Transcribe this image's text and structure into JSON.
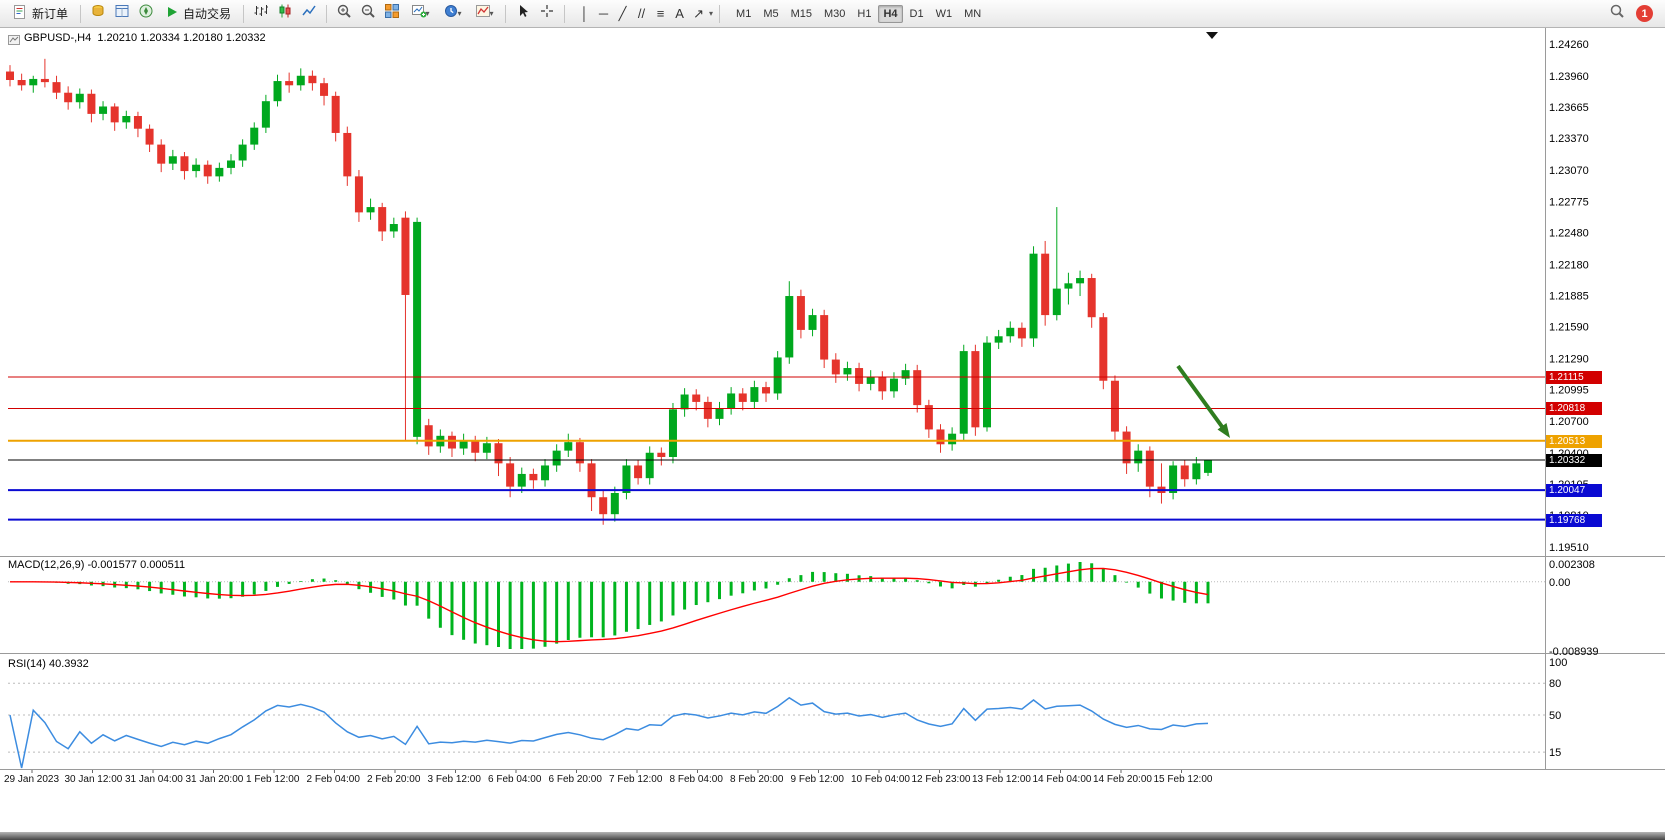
{
  "toolbar": {
    "new_order_label": "新订单",
    "autotrade_label": "自动交易",
    "timeframes": [
      "M1",
      "M5",
      "M15",
      "M30",
      "H1",
      "H4",
      "D1",
      "W1",
      "MN"
    ],
    "active_timeframe": "H4",
    "draw_tools": [
      {
        "name": "vertical-line-tool",
        "glyph": "│"
      },
      {
        "name": "horizontal-line-tool",
        "glyph": "─"
      },
      {
        "name": "trendline-tool",
        "glyph": "╱"
      },
      {
        "name": "channel-tool",
        "glyph": "//"
      },
      {
        "name": "fibonacci-tool",
        "glyph": "≡"
      },
      {
        "name": "text-tool",
        "glyph": "A"
      },
      {
        "name": "arrow-tool",
        "glyph": "↗"
      }
    ],
    "notification_count": "1"
  },
  "chart": {
    "symbol_info": "GBPUSD-,H4  1.20210 1.20334 1.20180 1.20332"
  },
  "macd": {
    "label": "MACD(12,26,9) -0.001577 0.000511",
    "axis": [
      "0.002308",
      "0.00",
      "-0.008939"
    ]
  },
  "rsi": {
    "label": "RSI(14) 40.3932",
    "axis": [
      "100",
      "80",
      "50",
      "15"
    ],
    "levels": [
      80,
      50,
      15
    ]
  },
  "chart_data": {
    "type": "candlestick",
    "symbol": "GBPUSD-",
    "timeframe": "H4",
    "title": "GBPUSD-,H4",
    "price_axis": {
      "top": 1.2426,
      "bottom": 1.1951,
      "ticks": [
        1.2426,
        1.2396,
        1.23665,
        1.2337,
        1.2307,
        1.22775,
        1.2248,
        1.2218,
        1.21885,
        1.2159,
        1.2129,
        1.20995,
        1.207,
        1.204,
        1.20105,
        1.1981,
        1.1951
      ]
    },
    "time_labels": [
      "29 Jan 2023",
      "30 Jan 12:00",
      "31 Jan 04:00",
      "31 Jan 20:00",
      "1 Feb 12:00",
      "2 Feb 04:00",
      "2 Feb 20:00",
      "3 Feb 12:00",
      "6 Feb 04:00",
      "6 Feb 20:00",
      "7 Feb 12:00",
      "8 Feb 04:00",
      "8 Feb 20:00",
      "9 Feb 12:00",
      "10 Feb 04:00",
      "12 Feb 23:00",
      "13 Feb 12:00",
      "14 Feb 04:00",
      "14 Feb 20:00",
      "15 Feb 12:00"
    ],
    "hlines": [
      {
        "name": "resistance-line-1",
        "price": 1.21115,
        "label": "1.21115",
        "color": "#d20000",
        "width": 1
      },
      {
        "name": "resistance-line-2",
        "price": 1.20818,
        "label": "1.20818",
        "color": "#d20000",
        "width": 1
      },
      {
        "name": "pivot-line",
        "price": 1.20513,
        "label": "1.20513",
        "color": "#eea200",
        "width": 2
      },
      {
        "name": "current-price-line",
        "price": 1.20332,
        "label": "1.20332",
        "color": "#000000",
        "width": 1
      },
      {
        "name": "support-line-1",
        "price": 1.20047,
        "label": "1.20047",
        "color": "#0a0ad2",
        "width": 2
      },
      {
        "name": "support-line-2",
        "price": 1.19768,
        "label": "1.19768",
        "color": "#0a0ad2",
        "width": 2
      }
    ],
    "colors": {
      "up": "#00a81e",
      "down": "#e5342c",
      "macd_hist": "#00b41e",
      "macd_signal": "#ff0000",
      "rsi": "#3c8ce0",
      "arrow": "#2f7d1f"
    },
    "indicators": [
      "MACD(12,26,9)",
      "RSI(14)"
    ],
    "ohlc": [
      [
        1.24,
        1.2406,
        1.2386,
        1.2392
      ],
      [
        1.2392,
        1.2398,
        1.2382,
        1.2387
      ],
      [
        1.2387,
        1.2396,
        1.238,
        1.2393
      ],
      [
        1.2393,
        1.2412,
        1.2385,
        1.239
      ],
      [
        1.239,
        1.2396,
        1.2374,
        1.238
      ],
      [
        1.238,
        1.2386,
        1.2364,
        1.2371
      ],
      [
        1.2371,
        1.2384,
        1.2365,
        1.2379
      ],
      [
        1.2379,
        1.2383,
        1.2352,
        1.236
      ],
      [
        1.236,
        1.2372,
        1.2354,
        1.2367
      ],
      [
        1.2367,
        1.237,
        1.2344,
        1.2352
      ],
      [
        1.2352,
        1.2363,
        1.2346,
        1.2358
      ],
      [
        1.2358,
        1.2362,
        1.2338,
        1.2346
      ],
      [
        1.2346,
        1.235,
        1.2324,
        1.2331
      ],
      [
        1.2331,
        1.2336,
        1.2305,
        1.2313
      ],
      [
        1.2313,
        1.2326,
        1.2307,
        1.232
      ],
      [
        1.232,
        1.2324,
        1.2298,
        1.2306
      ],
      [
        1.2306,
        1.2318,
        1.23,
        1.2312
      ],
      [
        1.2312,
        1.2316,
        1.2294,
        1.2301
      ],
      [
        1.2301,
        1.2314,
        1.2296,
        1.2309
      ],
      [
        1.2309,
        1.2322,
        1.2303,
        1.2316
      ],
      [
        1.2316,
        1.2336,
        1.231,
        1.2331
      ],
      [
        1.2331,
        1.2352,
        1.2326,
        1.2347
      ],
      [
        1.2347,
        1.2378,
        1.2342,
        1.2372
      ],
      [
        1.2372,
        1.2397,
        1.2367,
        1.2391
      ],
      [
        1.2391,
        1.2399,
        1.238,
        1.2387
      ],
      [
        1.2387,
        1.2403,
        1.2382,
        1.2396
      ],
      [
        1.2396,
        1.2401,
        1.2382,
        1.2389
      ],
      [
        1.2389,
        1.2394,
        1.2368,
        1.2377
      ],
      [
        1.2377,
        1.2381,
        1.2334,
        1.2342
      ],
      [
        1.2342,
        1.2348,
        1.2292,
        1.2301
      ],
      [
        1.2301,
        1.2307,
        1.2258,
        1.2267
      ],
      [
        1.2267,
        1.228,
        1.226,
        1.2272
      ],
      [
        1.2272,
        1.2276,
        1.224,
        1.2249
      ],
      [
        1.2249,
        1.2262,
        1.2243,
        1.2256
      ],
      [
        1.2262,
        1.2268,
        1.2052,
        1.2189
      ],
      [
        1.2055,
        1.2262,
        1.2048,
        1.2258
      ],
      [
        1.2066,
        1.2072,
        1.2038,
        1.2046
      ],
      [
        1.2046,
        1.2062,
        1.204,
        1.2056
      ],
      [
        1.2056,
        1.206,
        1.2036,
        1.2044
      ],
      [
        1.2044,
        1.2058,
        1.2038,
        1.2052
      ],
      [
        1.2052,
        1.2056,
        1.2032,
        1.204
      ],
      [
        1.204,
        1.2055,
        1.2034,
        1.2049
      ],
      [
        1.2049,
        1.2053,
        1.2018,
        1.203
      ],
      [
        1.203,
        1.2036,
        1.1998,
        1.2008
      ],
      [
        1.2008,
        1.2026,
        1.2002,
        1.202
      ],
      [
        1.202,
        1.2025,
        1.2006,
        1.2014
      ],
      [
        1.2014,
        1.2034,
        1.2008,
        1.2028
      ],
      [
        1.2028,
        1.2048,
        1.2022,
        1.2042
      ],
      [
        1.2042,
        1.2058,
        1.2036,
        1.205
      ],
      [
        1.205,
        1.2054,
        1.2022,
        1.203
      ],
      [
        1.203,
        1.2034,
        1.1985,
        1.1998
      ],
      [
        1.1998,
        1.2004,
        1.1972,
        1.1982
      ],
      [
        1.1982,
        1.2008,
        1.1975,
        1.2002
      ],
      [
        1.2002,
        1.2034,
        1.1996,
        1.2028
      ],
      [
        1.2028,
        1.2033,
        1.201,
        1.2016
      ],
      [
        1.2016,
        1.2046,
        1.201,
        1.204
      ],
      [
        1.204,
        1.2045,
        1.2028,
        1.2036
      ],
      [
        1.2036,
        1.2087,
        1.203,
        1.2081
      ],
      [
        1.2081,
        1.2101,
        1.2074,
        1.2095
      ],
      [
        1.2095,
        1.21,
        1.208,
        1.2088
      ],
      [
        1.2088,
        1.2093,
        1.2064,
        1.2072
      ],
      [
        1.2072,
        1.2088,
        1.2066,
        1.2082
      ],
      [
        1.2082,
        1.2102,
        1.2076,
        1.2096
      ],
      [
        1.2096,
        1.2101,
        1.208,
        1.2088
      ],
      [
        1.2088,
        1.2108,
        1.2082,
        1.2102
      ],
      [
        1.2102,
        1.2107,
        1.2088,
        1.2096
      ],
      [
        1.2096,
        1.2136,
        1.209,
        1.213
      ],
      [
        1.213,
        1.2202,
        1.2124,
        1.2188
      ],
      [
        1.2188,
        1.2194,
        1.2148,
        1.2156
      ],
      [
        1.2156,
        1.2176,
        1.215,
        1.217
      ],
      [
        1.217,
        1.2175,
        1.212,
        1.2128
      ],
      [
        1.2128,
        1.2134,
        1.2106,
        1.2114
      ],
      [
        1.2114,
        1.2126,
        1.2108,
        1.212
      ],
      [
        1.212,
        1.2125,
        1.2098,
        1.2105
      ],
      [
        1.2105,
        1.2118,
        1.2099,
        1.2112
      ],
      [
        1.2112,
        1.2117,
        1.209,
        1.2098
      ],
      [
        1.2098,
        1.2116,
        1.2092,
        1.211
      ],
      [
        1.211,
        1.2124,
        1.2104,
        1.2118
      ],
      [
        1.2118,
        1.2123,
        1.2078,
        1.2085
      ],
      [
        1.2085,
        1.209,
        1.2054,
        1.2062
      ],
      [
        1.2062,
        1.2067,
        1.204,
        1.2048
      ],
      [
        1.2048,
        1.2064,
        1.2042,
        1.2058
      ],
      [
        1.2058,
        1.2142,
        1.2052,
        1.2136
      ],
      [
        1.2136,
        1.2142,
        1.2056,
        1.2064
      ],
      [
        1.2064,
        1.215,
        1.206,
        1.2144
      ],
      [
        1.2144,
        1.2156,
        1.2138,
        1.215
      ],
      [
        1.215,
        1.2164,
        1.2144,
        1.2158
      ],
      [
        1.2158,
        1.2163,
        1.214,
        1.2148
      ],
      [
        1.2148,
        1.2235,
        1.214,
        1.2228
      ],
      [
        1.2228,
        1.224,
        1.216,
        1.217
      ],
      [
        1.217,
        1.2272,
        1.2165,
        1.2195
      ],
      [
        1.2195,
        1.221,
        1.218,
        1.22
      ],
      [
        1.22,
        1.2212,
        1.2188,
        1.2205
      ],
      [
        1.2205,
        1.2209,
        1.2158,
        1.2168
      ],
      [
        1.2168,
        1.2172,
        1.21,
        1.2108
      ],
      [
        1.2108,
        1.2113,
        1.2052,
        1.206
      ],
      [
        1.206,
        1.2065,
        1.202,
        1.203
      ],
      [
        1.203,
        1.2048,
        1.2022,
        1.2042
      ],
      [
        1.2042,
        1.2046,
        1.1998,
        1.2008
      ],
      [
        1.2008,
        1.203,
        1.1992,
        1.2002
      ],
      [
        1.2002,
        1.2032,
        1.1996,
        1.2028
      ],
      [
        1.2028,
        1.2033,
        1.2008,
        1.2015
      ],
      [
        1.2015,
        1.2036,
        1.201,
        1.203
      ],
      [
        1.2021,
        1.20334,
        1.2018,
        1.20332
      ]
    ]
  }
}
